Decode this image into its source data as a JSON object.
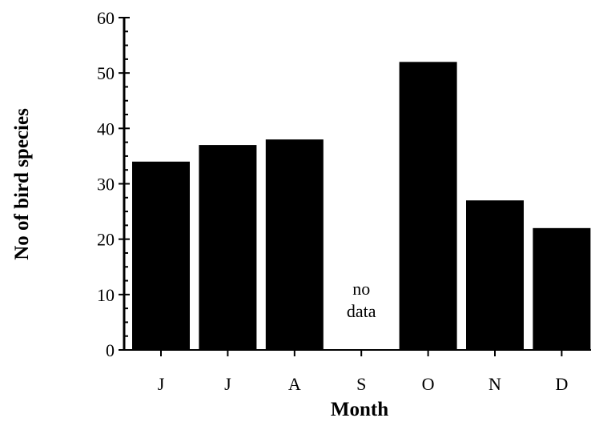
{
  "chart_data": {
    "type": "bar",
    "title": "",
    "xlabel": "Month",
    "ylabel": "No of bird species",
    "categories": [
      "J",
      "J",
      "A",
      "S",
      "O",
      "N",
      "D"
    ],
    "values": [
      34,
      37,
      38,
      null,
      52,
      27,
      22
    ],
    "ylim": [
      0,
      60
    ],
    "yticks": [
      0,
      10,
      20,
      30,
      40,
      50,
      60
    ],
    "grid": false,
    "legend": "none",
    "bar_color": "#000000",
    "annotations": [
      {
        "category_index": 3,
        "lines": [
          "no",
          "data"
        ]
      }
    ]
  }
}
